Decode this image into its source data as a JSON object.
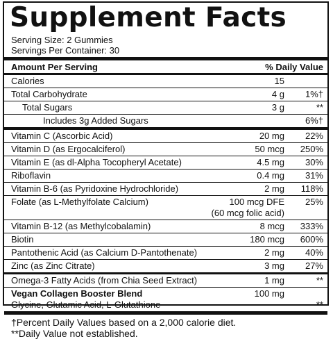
{
  "title": "Supplement Facts",
  "serving_size": "Serving Size: 2 Gummies",
  "servings_per_container": "Servings Per Container: 30",
  "header": {
    "amount_label": "Amount Per Serving",
    "dv_label": "% Daily Value"
  },
  "rows": [
    {
      "name": "Calories",
      "amount": "15",
      "dv": ""
    },
    {
      "name": "Total Carbohydrate",
      "amount": "4 g",
      "dv": "1%†"
    },
    {
      "name": "Total Sugars",
      "amount": "3 g",
      "dv": "**"
    },
    {
      "name": "Includes 3g Added Sugars",
      "amount": "",
      "dv": "6%†"
    },
    {
      "name": "Vitamin C (Ascorbic Acid)",
      "amount": "20 mg",
      "dv": "22%"
    },
    {
      "name": "Vitamin D (as Ergocalciferol)",
      "amount": "50 mcg",
      "dv": "250%"
    },
    {
      "name": "Vitamin E (as dl-Alpha Tocopheryl Acetate)",
      "amount": "4.5 mg",
      "dv": "30%"
    },
    {
      "name": "Riboflavin",
      "amount": "0.4 mg",
      "dv": "31%"
    },
    {
      "name": "Vitamin B-6 (as Pyridoxine Hydrochloride)",
      "amount": "2 mg",
      "dv": "118%"
    },
    {
      "name": "Folate (as L-Methylfolate Calcium)",
      "amount": "100 mcg DFE",
      "amount_line2": "(60 mcg folic acid)",
      "dv": "25%"
    },
    {
      "name": "Vitamin B-12 (as Methylcobalamin)",
      "amount": "8 mcg",
      "dv": "333%"
    },
    {
      "name": "Biotin",
      "amount": "180 mcg",
      "dv": "600%"
    },
    {
      "name": "Pantothenic Acid (as Calcium D-Pantothenate)",
      "amount": "2 mg",
      "dv": "40%"
    },
    {
      "name": "Zinc (as Zinc Citrate)",
      "amount": "3 mg",
      "dv": "27%"
    },
    {
      "name": "Omega-3 Fatty Acids (from Chia Seed Extract)",
      "amount": "1 mg",
      "dv": "**"
    }
  ],
  "blend": {
    "name": "Vegan Collagen Booster Blend",
    "ingredients": "Glycine, Glutamic Acid, L-Glutathione",
    "amount": "100 mg",
    "dv": "**"
  },
  "footnotes": [
    "†Percent Daily Values based on a 2,000 calorie diet.",
    "**Daily Value not established."
  ]
}
